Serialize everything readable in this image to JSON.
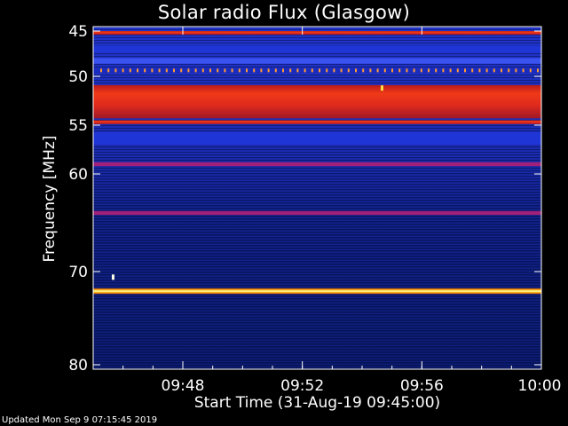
{
  "title": "Solar radio Flux (Glasgow)",
  "xlabel": "Start Time (31-Aug-19 09:45:00)",
  "ylabel": "Frequency [MHz]",
  "footer": "Updated Mon Sep  9 07:15:45 2019",
  "chart_data": {
    "type": "heatmap",
    "title": "Solar radio Flux (Glasgow)",
    "xlabel": "Start Time (31-Aug-19 09:45:00)",
    "ylabel": "Frequency [MHz]",
    "xlim": [
      "09:45:00",
      "10:00:00"
    ],
    "ylim": [
      45,
      80
    ],
    "y_inverted": true,
    "xticks": [
      "09:48",
      "09:52",
      "09:56",
      "10:00"
    ],
    "yticks": [
      45,
      50,
      55,
      60,
      70,
      80
    ],
    "background_color": "#0a1a6a",
    "bands": [
      {
        "freq": [
          45.0,
          45.4
        ],
        "intensity": "red"
      },
      {
        "freq": [
          46.6,
          47.4
        ],
        "intensity": "blue"
      },
      {
        "freq": [
          48.0,
          48.6
        ],
        "intensity": "bright-blue"
      },
      {
        "freq": [
          49.1,
          49.6
        ],
        "intensity": "orange-dotted"
      },
      {
        "freq": [
          50.9,
          54.3
        ],
        "intensity": "red"
      },
      {
        "freq": [
          54.5,
          54.9
        ],
        "intensity": "red"
      },
      {
        "freq": [
          55.7,
          57.0
        ],
        "intensity": "blue"
      },
      {
        "freq": [
          58.8,
          59.2
        ],
        "intensity": "magenta"
      },
      {
        "freq": [
          63.8,
          64.2
        ],
        "intensity": "magenta"
      },
      {
        "freq": [
          71.8,
          72.4
        ],
        "intensity": "yellow-white"
      }
    ],
    "spots": [
      {
        "time": "09:54:40",
        "freq": 51.2,
        "intensity": "yellow"
      },
      {
        "time": "09:45:40",
        "freq": 70.6,
        "intensity": "white"
      }
    ]
  }
}
